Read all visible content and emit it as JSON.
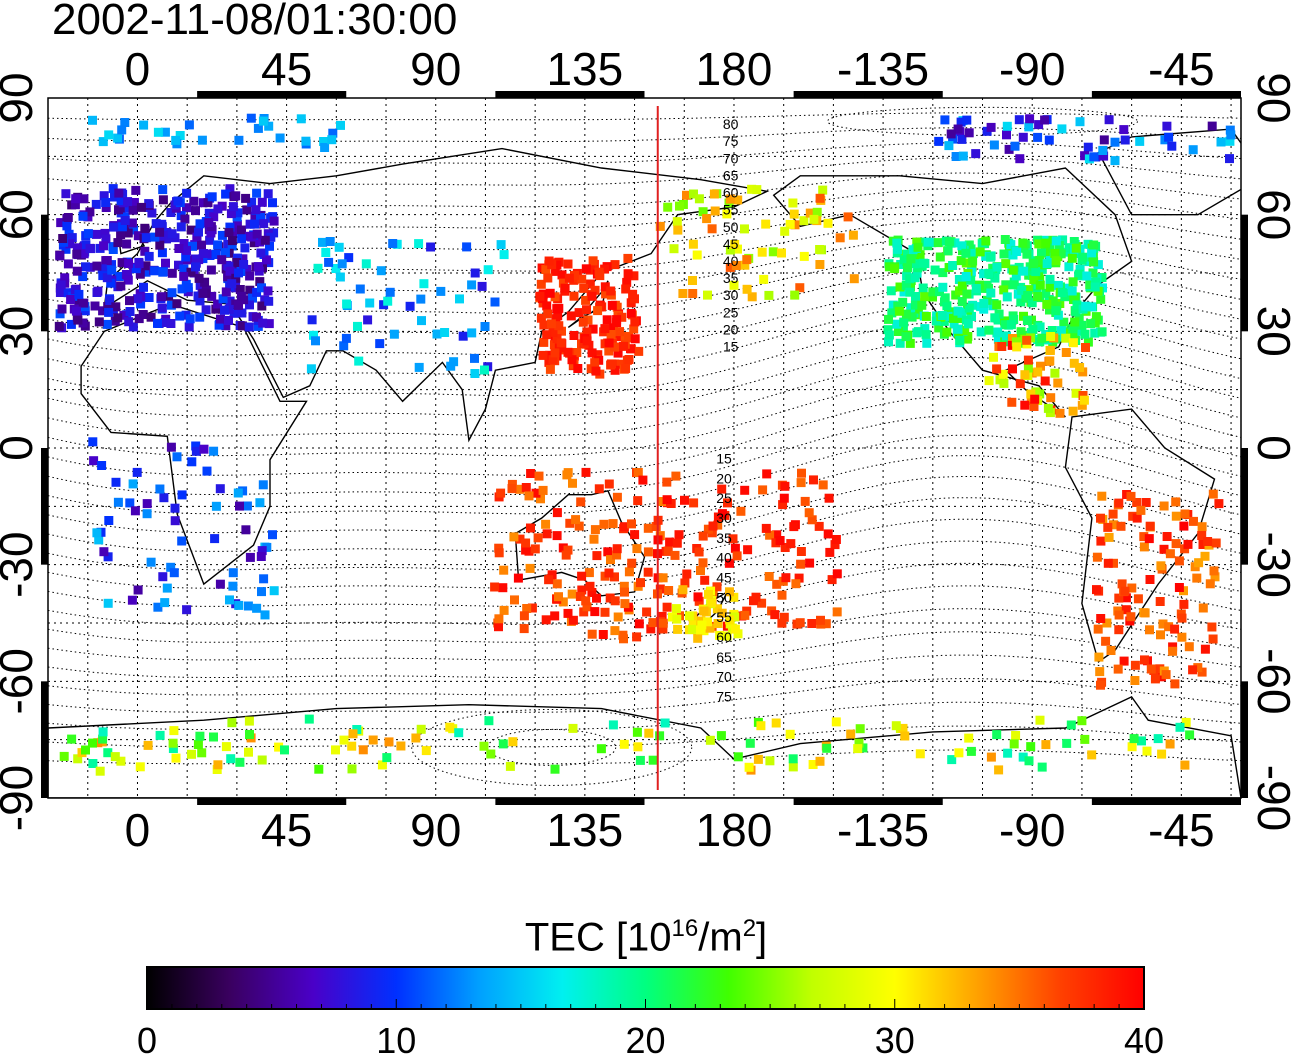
{
  "title": "2002-11-08/01:30:00",
  "map": {
    "top_lon_labels": [
      "0",
      "45",
      "90",
      "135",
      "180",
      "-135",
      "-90",
      "-45"
    ],
    "bottom_lon_labels": [
      "0",
      "45",
      "90",
      "135",
      "180",
      "-135",
      "-90",
      "-45"
    ],
    "lat_labels": [
      "90",
      "60",
      "30",
      "0",
      "-30",
      "-60",
      "-90"
    ],
    "lon_values": [
      0,
      45,
      90,
      135,
      180,
      225,
      270,
      315
    ],
    "lat_values": [
      90,
      60,
      30,
      0,
      -30,
      -60,
      -90
    ],
    "lon_range": [
      -27,
      333
    ],
    "lat_range": [
      -90,
      90
    ],
    "projection": "equirectangular",
    "grid": "dotted every 15 degrees",
    "day_line_lon": 157,
    "day_line_color": "#e02020",
    "contour_labels_north": [
      "80",
      "75",
      "70",
      "65",
      "60",
      "55",
      "50",
      "45",
      "40",
      "35",
      "30",
      "25",
      "20",
      "15"
    ],
    "contour_labels_south": [
      "15",
      "20",
      "25",
      "30",
      "35",
      "40",
      "45",
      "50",
      "55",
      "60",
      "65",
      "70",
      "75"
    ]
  },
  "colorbar": {
    "title_main": "TEC  [10",
    "title_exp1": "16",
    "title_mid": "/m",
    "title_exp2": "2",
    "title_end": "]",
    "tick_labels": [
      "0",
      "10",
      "20",
      "30",
      "40"
    ],
    "min": 0,
    "max": 40,
    "colormap": [
      "#000000",
      "#3a0060",
      "#4a00c8",
      "#0030ff",
      "#00a0ff",
      "#00f0f0",
      "#00ff80",
      "#40ff00",
      "#c0ff00",
      "#ffff00",
      "#ffa000",
      "#ff4000",
      "#ff0000"
    ]
  }
}
